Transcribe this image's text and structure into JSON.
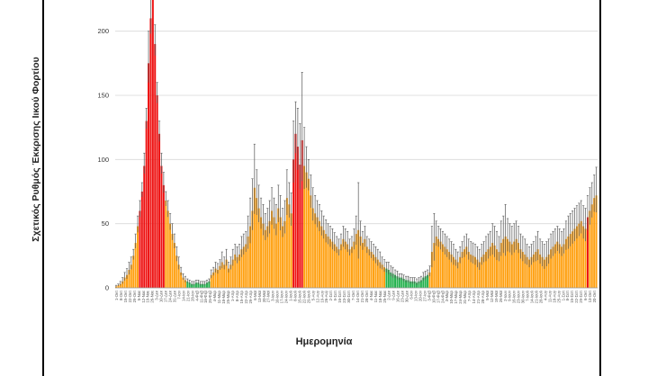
{
  "chart_data": {
    "type": "bar",
    "ylabel": "Σχετικός Ρυθμός Έκκρισης Ιικού Φορτίου",
    "xlabel": "Ημερομηνία",
    "ylim": [
      0,
      225
    ],
    "yticks": [
      0,
      50,
      100,
      150,
      200
    ],
    "grid": "horizontal",
    "colors": {
      "high": "#ee1111",
      "medium": "#ffa010",
      "low": "#23b14d",
      "error": "#555555",
      "grid": "#d9d9d9"
    },
    "series": [
      {
        "name": "",
        "values": [
          1,
          2,
          3,
          5,
          8,
          10,
          14,
          18,
          25,
          35,
          48,
          60,
          75,
          95,
          130,
          175,
          210,
          240,
          190,
          150,
          120,
          95,
          80,
          68,
          60,
          50,
          42,
          35,
          25,
          18,
          12,
          8,
          6,
          5,
          4,
          3,
          3,
          4,
          4,
          3,
          3,
          3,
          4,
          5,
          10,
          12,
          15,
          14,
          17,
          20,
          18,
          22,
          15,
          18,
          22,
          26,
          24,
          26,
          30,
          32,
          34,
          40,
          48,
          60,
          78,
          70,
          62,
          55,
          50,
          45,
          48,
          52,
          60,
          55,
          50,
          62,
          55,
          48,
          52,
          70,
          65,
          58,
          100,
          120,
          110,
          96,
          115,
          95,
          90,
          85,
          72,
          62,
          58,
          55,
          52,
          48,
          45,
          42,
          40,
          38,
          36,
          34,
          32,
          30,
          34,
          38,
          36,
          34,
          30,
          32,
          36,
          42,
          45,
          40,
          35,
          38,
          32,
          30,
          28,
          26,
          24,
          22,
          20,
          18,
          16,
          15,
          14,
          12,
          11,
          10,
          9,
          8,
          8,
          7,
          6,
          6,
          5,
          5,
          5,
          4,
          5,
          6,
          8,
          9,
          10,
          12,
          28,
          35,
          40,
          38,
          36,
          34,
          32,
          30,
          28,
          26,
          24,
          22,
          20,
          24,
          28,
          30,
          32,
          28,
          26,
          25,
          24,
          22,
          20,
          24,
          26,
          28,
          30,
          32,
          35,
          33,
          30,
          28,
          35,
          38,
          40,
          38,
          36,
          34,
          36,
          38,
          35,
          30,
          28,
          26,
          24,
          22,
          24,
          26,
          28,
          30,
          26,
          24,
          22,
          24,
          26,
          30,
          32,
          34,
          36,
          34,
          32,
          34,
          38,
          40,
          42,
          44,
          46,
          48,
          50,
          52,
          48,
          46,
          55,
          60,
          65,
          70,
          72
        ]
      }
    ],
    "status": [
      "medium",
      "medium",
      "medium",
      "medium",
      "medium",
      "medium",
      "medium",
      "medium",
      "medium",
      "medium",
      "medium",
      "high",
      "high",
      "high",
      "high",
      "high",
      "high",
      "high",
      "high",
      "high",
      "high",
      "high",
      "high",
      "medium",
      "medium",
      "medium",
      "medium",
      "medium",
      "medium",
      "medium",
      "medium",
      "medium",
      "medium",
      "low",
      "low",
      "low",
      "low",
      "low",
      "low",
      "low",
      "low",
      "low",
      "low",
      "low",
      "medium",
      "medium",
      "medium",
      "medium",
      "medium",
      "medium",
      "medium",
      "medium",
      "medium",
      "medium",
      "medium",
      "medium",
      "medium",
      "medium",
      "medium",
      "medium",
      "medium",
      "medium",
      "medium",
      "medium",
      "medium",
      "medium",
      "medium",
      "medium",
      "medium",
      "medium",
      "medium",
      "medium",
      "medium",
      "medium",
      "medium",
      "medium",
      "medium",
      "medium",
      "medium",
      "medium",
      "medium",
      "medium",
      "high",
      "high",
      "high",
      "high",
      "high",
      "medium",
      "medium",
      "medium",
      "medium",
      "medium",
      "medium",
      "medium",
      "medium",
      "medium",
      "medium",
      "medium",
      "medium",
      "medium",
      "medium",
      "medium",
      "medium",
      "medium",
      "medium",
      "medium",
      "medium",
      "medium",
      "medium",
      "medium",
      "medium",
      "medium",
      "medium",
      "medium",
      "medium",
      "medium",
      "medium",
      "medium",
      "medium",
      "medium",
      "medium",
      "medium",
      "medium",
      "medium",
      "medium",
      "low",
      "low",
      "low",
      "low",
      "low",
      "low",
      "low",
      "low",
      "low",
      "low",
      "low",
      "low",
      "low",
      "low",
      "low",
      "low",
      "low",
      "low",
      "low",
      "low",
      "medium",
      "medium",
      "medium",
      "medium",
      "medium",
      "medium",
      "medium",
      "medium",
      "medium",
      "medium",
      "medium",
      "medium",
      "medium",
      "medium",
      "medium",
      "medium",
      "medium",
      "medium",
      "medium",
      "medium",
      "medium",
      "medium",
      "medium",
      "medium",
      "medium",
      "medium",
      "medium",
      "medium",
      "medium",
      "medium",
      "medium",
      "medium",
      "medium",
      "medium",
      "medium",
      "medium",
      "medium",
      "medium",
      "medium",
      "medium",
      "medium",
      "medium",
      "medium",
      "medium",
      "medium",
      "medium",
      "medium",
      "medium",
      "medium",
      "medium",
      "medium",
      "medium",
      "medium",
      "medium",
      "medium",
      "medium",
      "medium",
      "medium",
      "medium",
      "medium",
      "medium",
      "medium",
      "medium",
      "medium",
      "medium",
      "medium",
      "medium",
      "medium",
      "medium",
      "medium",
      "medium",
      "medium",
      "medium",
      "high"
    ],
    "error_upper": [
      2,
      3,
      5,
      8,
      12,
      15,
      20,
      24,
      30,
      42,
      56,
      68,
      82,
      105,
      140,
      200,
      230,
      260,
      205,
      160,
      130,
      105,
      90,
      75,
      68,
      58,
      50,
      42,
      32,
      24,
      16,
      11,
      9,
      7,
      6,
      5,
      5,
      6,
      6,
      5,
      5,
      5,
      6,
      7,
      14,
      16,
      20,
      19,
      22,
      28,
      24,
      30,
      20,
      24,
      30,
      34,
      32,
      34,
      40,
      42,
      44,
      56,
      70,
      85,
      112,
      92,
      80,
      70,
      65,
      58,
      62,
      68,
      78,
      70,
      65,
      80,
      72,
      62,
      68,
      92,
      82,
      74,
      130,
      145,
      140,
      128,
      168,
      125,
      110,
      100,
      88,
      78,
      72,
      68,
      65,
      60,
      56,
      53,
      50,
      48,
      46,
      43,
      40,
      38,
      42,
      48,
      46,
      44,
      38,
      40,
      46,
      56,
      82,
      52,
      44,
      48,
      40,
      38,
      36,
      34,
      32,
      30,
      28,
      24,
      22,
      20,
      20,
      17,
      16,
      14,
      13,
      11,
      11,
      10,
      9,
      9,
      8,
      8,
      8,
      7,
      8,
      9,
      12,
      13,
      14,
      17,
      48,
      58,
      52,
      48,
      46,
      44,
      42,
      40,
      38,
      36,
      34,
      30,
      28,
      32,
      36,
      40,
      42,
      38,
      36,
      35,
      34,
      32,
      30,
      34,
      36,
      40,
      42,
      44,
      50,
      48,
      44,
      40,
      52,
      56,
      65,
      54,
      50,
      48,
      50,
      52,
      48,
      42,
      40,
      38,
      34,
      32,
      34,
      36,
      40,
      44,
      38,
      36,
      34,
      36,
      38,
      42,
      44,
      46,
      48,
      46,
      44,
      46,
      52,
      56,
      58,
      60,
      62,
      64,
      66,
      68,
      64,
      62,
      72,
      78,
      82,
      88,
      94
    ]
  },
  "xticklabels": [
    "1-Οκτ",
    "8-Οκτ",
    "15-Οκτ",
    "22-Οκτ",
    "29-Οκτ",
    "5-Νοε",
    "12-Νοε",
    "19-Νοε",
    "26-Νοε",
    "3-Δεκ",
    "10-Δεκ",
    "17-Δεκ",
    "24-Δεκ",
    "31-Δεκ",
    "7-Ιαν",
    "14-Ιαν",
    "21-Ιαν",
    "28-Ιαν",
    "4-Φεβ",
    "11-Φεβ",
    "18-Φεβ",
    "25-Φεβ",
    "4-Μαρ",
    "11-Μαρ",
    "18-Μαρ",
    "25-Μαρ",
    "1-Απρ",
    "8-Απρ",
    "15-Απρ",
    "22-Απρ",
    "29-Απρ",
    "6-Μαϊ",
    "13-Μαϊ",
    "20-Μαϊ",
    "27-Μαϊ",
    "3-Ιουν",
    "10-Ιουν",
    "17-Ιουν",
    "24-Ιουν",
    "1-Ιουλ",
    "8-Ιουλ",
    "15-Ιουλ",
    "22-Ιουλ",
    "29-Ιουλ",
    "5-Αυγ",
    "12-Αυγ",
    "19-Αυγ",
    "26-Αυγ",
    "2-Σεπ",
    "9-Σεπ",
    "16-Σεπ",
    "23-Σεπ",
    "30-Σεπ",
    "7-Οκτ",
    "14-Οκτ",
    "21-Οκτ",
    "28-Οκτ",
    "4-Νοε",
    "11-Νοε",
    "18-Νοε",
    "25-Νοε",
    "2-Δεκ",
    "9-Δεκ",
    "16-Δεκ",
    "23-Δεκ",
    "30-Δεκ",
    "6-Ιαν",
    "13-Ιαν",
    "20-Ιαν",
    "27-Ιαν",
    "3-Φεβ",
    "10-Φεβ",
    "17-Φεβ",
    "24-Φεβ",
    "3-Μαρ",
    "10-Μαρ",
    "17-Μαρ",
    "24-Μαρ",
    "31-Μαρ",
    "7-Απρ",
    "14-Απρ",
    "21-Απρ",
    "28-Απρ",
    "5-Μαϊ",
    "12-Μαϊ",
    "19-Μαϊ",
    "26-Μαϊ",
    "2-Ιουν",
    "9-Ιουν",
    "16-Ιουν",
    "23-Ιουν",
    "30-Ιουν",
    "7-Ιουλ",
    "14-Ιουλ",
    "21-Ιουλ",
    "28-Ιουλ",
    "4-Αυγ",
    "11-Αυγ",
    "18-Αυγ",
    "25-Αυγ",
    "1-Σεπ",
    "8-Σεπ",
    "15-Σεπ",
    "22-Σεπ",
    "29-Σεπ",
    "6-Οκτ",
    "13-Οκτ",
    "20-Οκτ"
  ]
}
